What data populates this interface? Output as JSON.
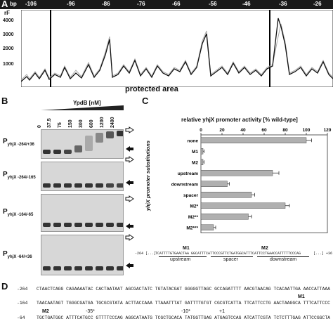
{
  "panels": {
    "a": "A",
    "b": "B",
    "c": "C",
    "d": "D"
  },
  "panel_a": {
    "bp_label": "bp",
    "positions": [
      "-106",
      "-96",
      "-86",
      "-76",
      "-66",
      "-56",
      "-46",
      "-36",
      "-26"
    ],
    "y_label": "rF",
    "y_ticks": [
      "4000",
      "3000",
      "2000",
      "1000"
    ],
    "x_label": "protected area"
  },
  "panel_b": {
    "protein_label": "YpdB [nM]",
    "concentrations": [
      "0",
      "37.5",
      "75",
      "150",
      "300",
      "600",
      "1200",
      "2400"
    ],
    "constructs": [
      {
        "main": "P",
        "sub": "yhjX -264/+36"
      },
      {
        "main": "P",
        "sub": "yhjX -264/-165"
      },
      {
        "main": "P",
        "sub": "yhjX -164/-65"
      },
      {
        "main": "P",
        "sub": "yhjX -64/+36"
      }
    ]
  },
  "chart_data": {
    "type": "bar",
    "title": "relative yhjX promoter activity [% wild-type]",
    "ylabel": "yhjX promoter substitutions",
    "xlim": [
      0,
      120
    ],
    "x_ticks": [
      "0",
      "20",
      "40",
      "60",
      "80",
      "100",
      "120"
    ],
    "categories": [
      "none",
      "M1",
      "M2",
      "upstream",
      "downstream",
      "spacer",
      "M2*",
      "M2**",
      "M2***"
    ],
    "values": [
      100,
      2,
      2,
      68,
      25,
      48,
      80,
      45,
      12
    ],
    "errors": [
      5,
      1,
      1,
      6,
      2,
      3,
      4,
      3,
      2
    ]
  },
  "panel_c_scheme": {
    "left_pos": "-264 [...]",
    "right_pos": "[...] +36",
    "sequence": "TCATTTTGTGAACTAA GGCATTTCATTCCCGTTCTGATGGCATTTCATTCCTGAACCATTTTTCCCAG",
    "m1": "M1",
    "m2": "M2",
    "regions": [
      "upstream",
      "spacer",
      "downstream"
    ]
  },
  "panel_d": {
    "lines": [
      {
        "pos": "-264",
        "text": "CTAACTCAGG CAGAAAATAC CACTAATAAT AGCGACTATC TGTATACGAT GGGGGTTAGC GCCAGATTTT AACGTAACAG TCACAATTGA AACCATTAAA"
      },
      {
        "pos": "-164",
        "text": "TAACAATAGT TGGGCGATGA TGCGCGTATA ACTTACCAAA TTAAATTTAT GATTTTGTGT CGCGTCATTA TTCATTCCTG AACTAAGGCA TTTCATTCCC"
      },
      {
        "pos": "-64",
        "text": "TGCTGATGGC ATTTCATGCC GTTTTCCCAG AGGCATAATG TCGCTGCACA TATGGTTGAG ATGAGTCCAG ATCATTCGTA TCTCTTTGAG ATTCCGGCTA"
      }
    ],
    "marks": {
      "m1": "M1",
      "m2": "M2",
      "m35": "-35*",
      "m10": "-10*",
      "p1": "+1"
    }
  }
}
